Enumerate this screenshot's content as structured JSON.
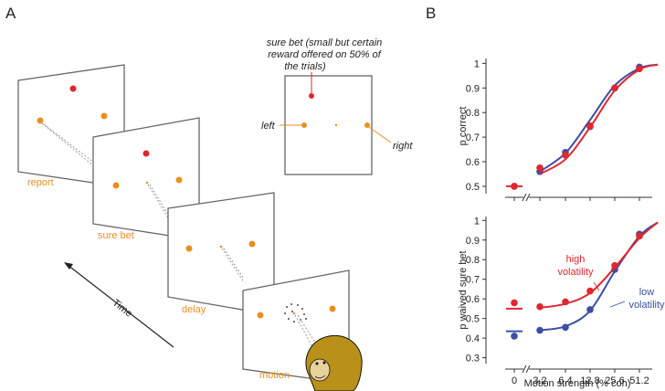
{
  "panel_labels": [
    "A",
    "B"
  ],
  "diagram": {
    "frames": [
      "report",
      "sure bet",
      "delay",
      "motion"
    ],
    "time_label": "Time",
    "inset": {
      "caption": [
        "sure bet (small but certain",
        "reward offered on 50% of",
        "the trials)"
      ],
      "left": "left",
      "right": "right"
    }
  },
  "chart_data": [
    {
      "type": "line",
      "ylabel": "p correct",
      "categories": [
        null,
        null,
        null,
        null,
        null,
        null,
        null
      ],
      "ylim": [
        0.47,
        1.02
      ],
      "yticks": [
        0.5,
        0.6,
        0.7,
        0.8,
        0.9,
        1
      ],
      "series": [
        {
          "color": "#3b4ea3",
          "values": [
            0.5,
            0.56,
            0.638,
            0.743,
            0.9,
            0.985,
            null
          ],
          "fit": [
            null,
            0.56,
            0.635,
            0.77,
            0.91,
            0.98,
            0.995
          ]
        },
        {
          "color": "#e0262f",
          "values": [
            0.5,
            0.575,
            0.627,
            0.746,
            0.9,
            0.978,
            null
          ],
          "fit": [
            0.5,
            0.55,
            0.61,
            0.74,
            0.89,
            0.975,
            0.995
          ]
        }
      ]
    },
    {
      "type": "line",
      "ylabel": "p waived sure bet",
      "xlabel": "Motion strength (% coh)",
      "categories": [
        "0",
        "3.2",
        "6.4",
        "12.8",
        "25.6",
        "51.2",
        null
      ],
      "ylim": [
        0.27,
        1.02
      ],
      "yticks": [
        0.3,
        0.4,
        0.5,
        0.6,
        0.7,
        0.8,
        0.9,
        1
      ],
      "series": [
        {
          "name": "low volatility",
          "color": "#3b4ea3",
          "values": [
            0.41,
            0.44,
            0.455,
            0.545,
            0.75,
            0.93,
            null
          ],
          "fit": [
            0.435,
            0.44,
            0.46,
            0.54,
            0.74,
            0.92,
            0.99
          ]
        },
        {
          "name": "high volatility",
          "color": "#e0262f",
          "values": [
            0.58,
            0.56,
            0.585,
            0.64,
            0.77,
            0.92,
            null
          ],
          "fit": [
            0.55,
            0.555,
            0.575,
            0.63,
            0.76,
            0.91,
            0.99
          ]
        }
      ]
    }
  ]
}
